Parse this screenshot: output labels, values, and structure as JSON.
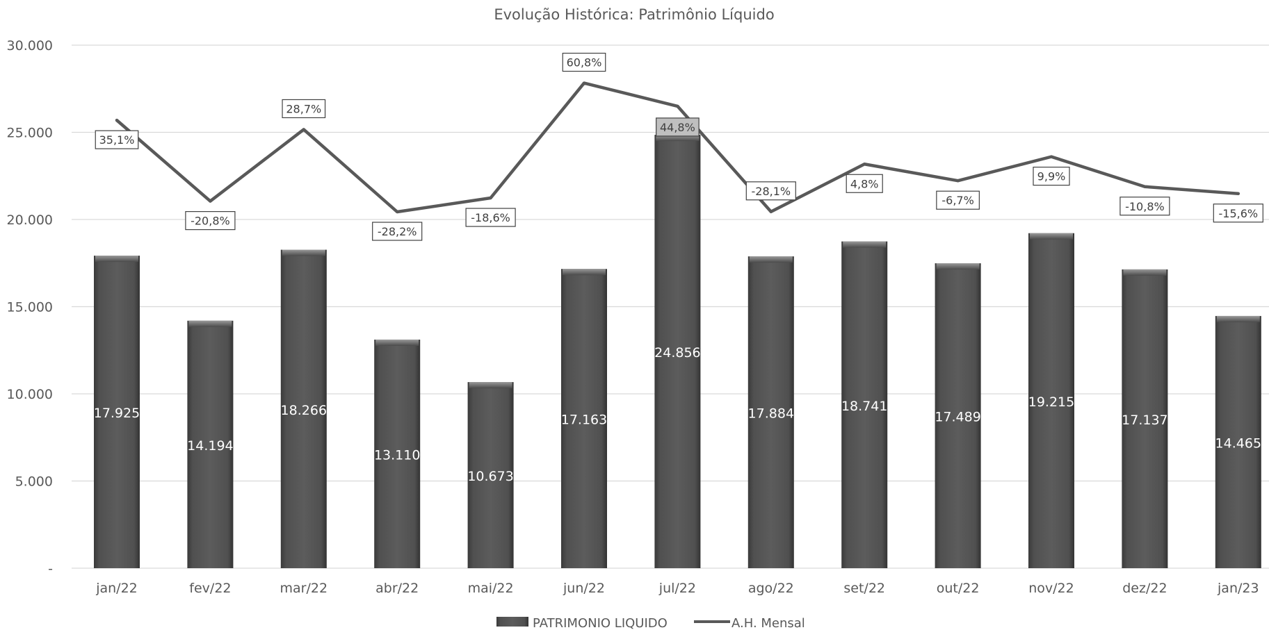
{
  "chart_data": {
    "type": "bar",
    "title": "Evolução Histórica: Patrimônio Líquido",
    "categories": [
      "jan/22",
      "fev/22",
      "mar/22",
      "abr/22",
      "mai/22",
      "jun/22",
      "jul/22",
      "ago/22",
      "set/22",
      "out/22",
      "nov/22",
      "dez/22",
      "jan/23"
    ],
    "ylim": [
      0,
      30000
    ],
    "y_ticks": [
      "-",
      "5.000",
      "10.000",
      "15.000",
      "20.000",
      "25.000",
      "30.000"
    ],
    "grid": true,
    "legend_position": "bottom",
    "series": [
      {
        "name": "PATRIMONIO LIQUIDO",
        "type": "bar",
        "color": "#595959",
        "values": [
          17925,
          14194,
          18266,
          13110,
          10673,
          17163,
          24856,
          17884,
          18741,
          17489,
          19215,
          17137,
          14465
        ],
        "labels": [
          "17.925",
          "14.194",
          "18.266",
          "13.110",
          "10.673",
          "17.163",
          "24.856",
          "17.884",
          "18.741",
          "17.489",
          "19.215",
          "17.137",
          "14.465"
        ]
      },
      {
        "name": "A.H. Mensal",
        "type": "line",
        "color": "#595959",
        "values": [
          35.1,
          -20.8,
          28.7,
          -28.2,
          -18.6,
          60.8,
          44.8,
          -28.1,
          4.8,
          -6.7,
          9.9,
          -10.8,
          -15.6
        ],
        "labels": [
          "35,1%",
          "-20,8%",
          "28,7%",
          "-28,2%",
          "-18,6%",
          "60,8%",
          "44,8%",
          "-28,1%",
          "4,8%",
          "-6,7%",
          "9,9%",
          "-10,8%",
          "-15,6%"
        ]
      }
    ]
  }
}
